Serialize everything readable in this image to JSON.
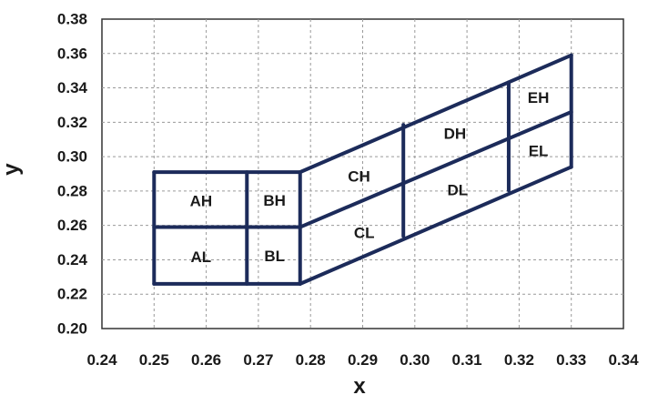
{
  "chart_data": {
    "type": "diagram",
    "xlabel": "x",
    "ylabel": "y",
    "xlim": [
      0.24,
      0.34
    ],
    "ylim": [
      0.2,
      0.38
    ],
    "x_ticks": [
      "0.24",
      "0.25",
      "0.26",
      "0.27",
      "0.28",
      "0.29",
      "0.30",
      "0.31",
      "0.32",
      "0.33",
      "0.34"
    ],
    "y_ticks": [
      "0.20",
      "0.22",
      "0.24",
      "0.26",
      "0.28",
      "0.30",
      "0.32",
      "0.34",
      "0.36",
      "0.38"
    ],
    "grid": true,
    "line_color": "#1c2b5a",
    "regions": [
      {
        "label": "AH",
        "x": 0.259,
        "y": 0.274
      },
      {
        "label": "BH",
        "x": 0.2731,
        "y": 0.2745
      },
      {
        "label": "CH",
        "x": 0.2893,
        "y": 0.2885
      },
      {
        "label": "DH",
        "x": 0.3077,
        "y": 0.3132
      },
      {
        "label": "EH",
        "x": 0.3237,
        "y": 0.3341
      },
      {
        "label": "AL",
        "x": 0.259,
        "y": 0.2415
      },
      {
        "label": "BL",
        "x": 0.2731,
        "y": 0.242
      },
      {
        "label": "CL",
        "x": 0.2903,
        "y": 0.2555
      },
      {
        "label": "DL",
        "x": 0.3082,
        "y": 0.2805
      },
      {
        "label": "EL",
        "x": 0.3237,
        "y": 0.3032
      }
    ],
    "segments": [
      {
        "x": [
          0.25,
          0.278
        ],
        "y": [
          0.291,
          0.291
        ]
      },
      {
        "x": [
          0.25,
          0.278
        ],
        "y": [
          0.259,
          0.259
        ]
      },
      {
        "x": [
          0.25,
          0.278
        ],
        "y": [
          0.226,
          0.226
        ]
      },
      {
        "x": [
          0.25,
          0.25
        ],
        "y": [
          0.226,
          0.291
        ]
      },
      {
        "x": [
          0.2678,
          0.2678
        ],
        "y": [
          0.226,
          0.291
        ]
      },
      {
        "x": [
          0.278,
          0.278
        ],
        "y": [
          0.226,
          0.291
        ]
      },
      {
        "x": [
          0.278,
          0.33
        ],
        "y": [
          0.291,
          0.359
        ]
      },
      {
        "x": [
          0.278,
          0.33
        ],
        "y": [
          0.259,
          0.326
        ]
      },
      {
        "x": [
          0.278,
          0.33
        ],
        "y": [
          0.226,
          0.294
        ]
      },
      {
        "x": [
          0.2978,
          0.2978
        ],
        "y": [
          0.2538,
          0.3185
        ]
      },
      {
        "x": [
          0.318,
          0.318
        ],
        "y": [
          0.2804,
          0.3433
        ]
      },
      {
        "x": [
          0.33,
          0.33
        ],
        "y": [
          0.294,
          0.359
        ]
      }
    ]
  }
}
